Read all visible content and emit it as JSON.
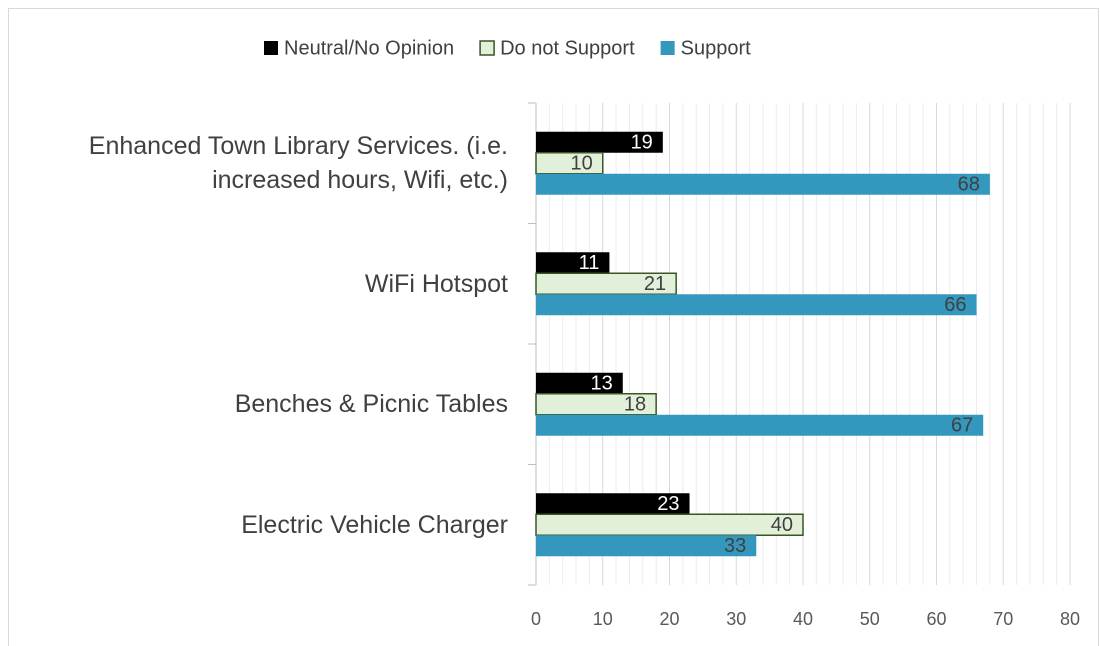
{
  "chart_data": {
    "type": "hbar",
    "categories": [
      "Enhanced Town Library Services. (i.e. increased hours, Wifi, etc.)",
      "WiFi Hotspot",
      "Benches & Picnic Tables",
      "Electric Vehicle Charger"
    ],
    "series": [
      {
        "name": "Neutral/No Opinion",
        "color": "#000000",
        "values": [
          19,
          11,
          13,
          23
        ]
      },
      {
        "name": "Do not Support",
        "color": "#e2f0d9",
        "values": [
          10,
          21,
          18,
          40
        ]
      },
      {
        "name": "Support",
        "color": "#3497be",
        "values": [
          68,
          66,
          67,
          33
        ]
      }
    ],
    "xlim": [
      0,
      80
    ],
    "xticks": [
      0,
      10,
      20,
      30,
      40,
      50,
      60,
      70,
      80
    ],
    "grid": true,
    "legend": "top"
  }
}
